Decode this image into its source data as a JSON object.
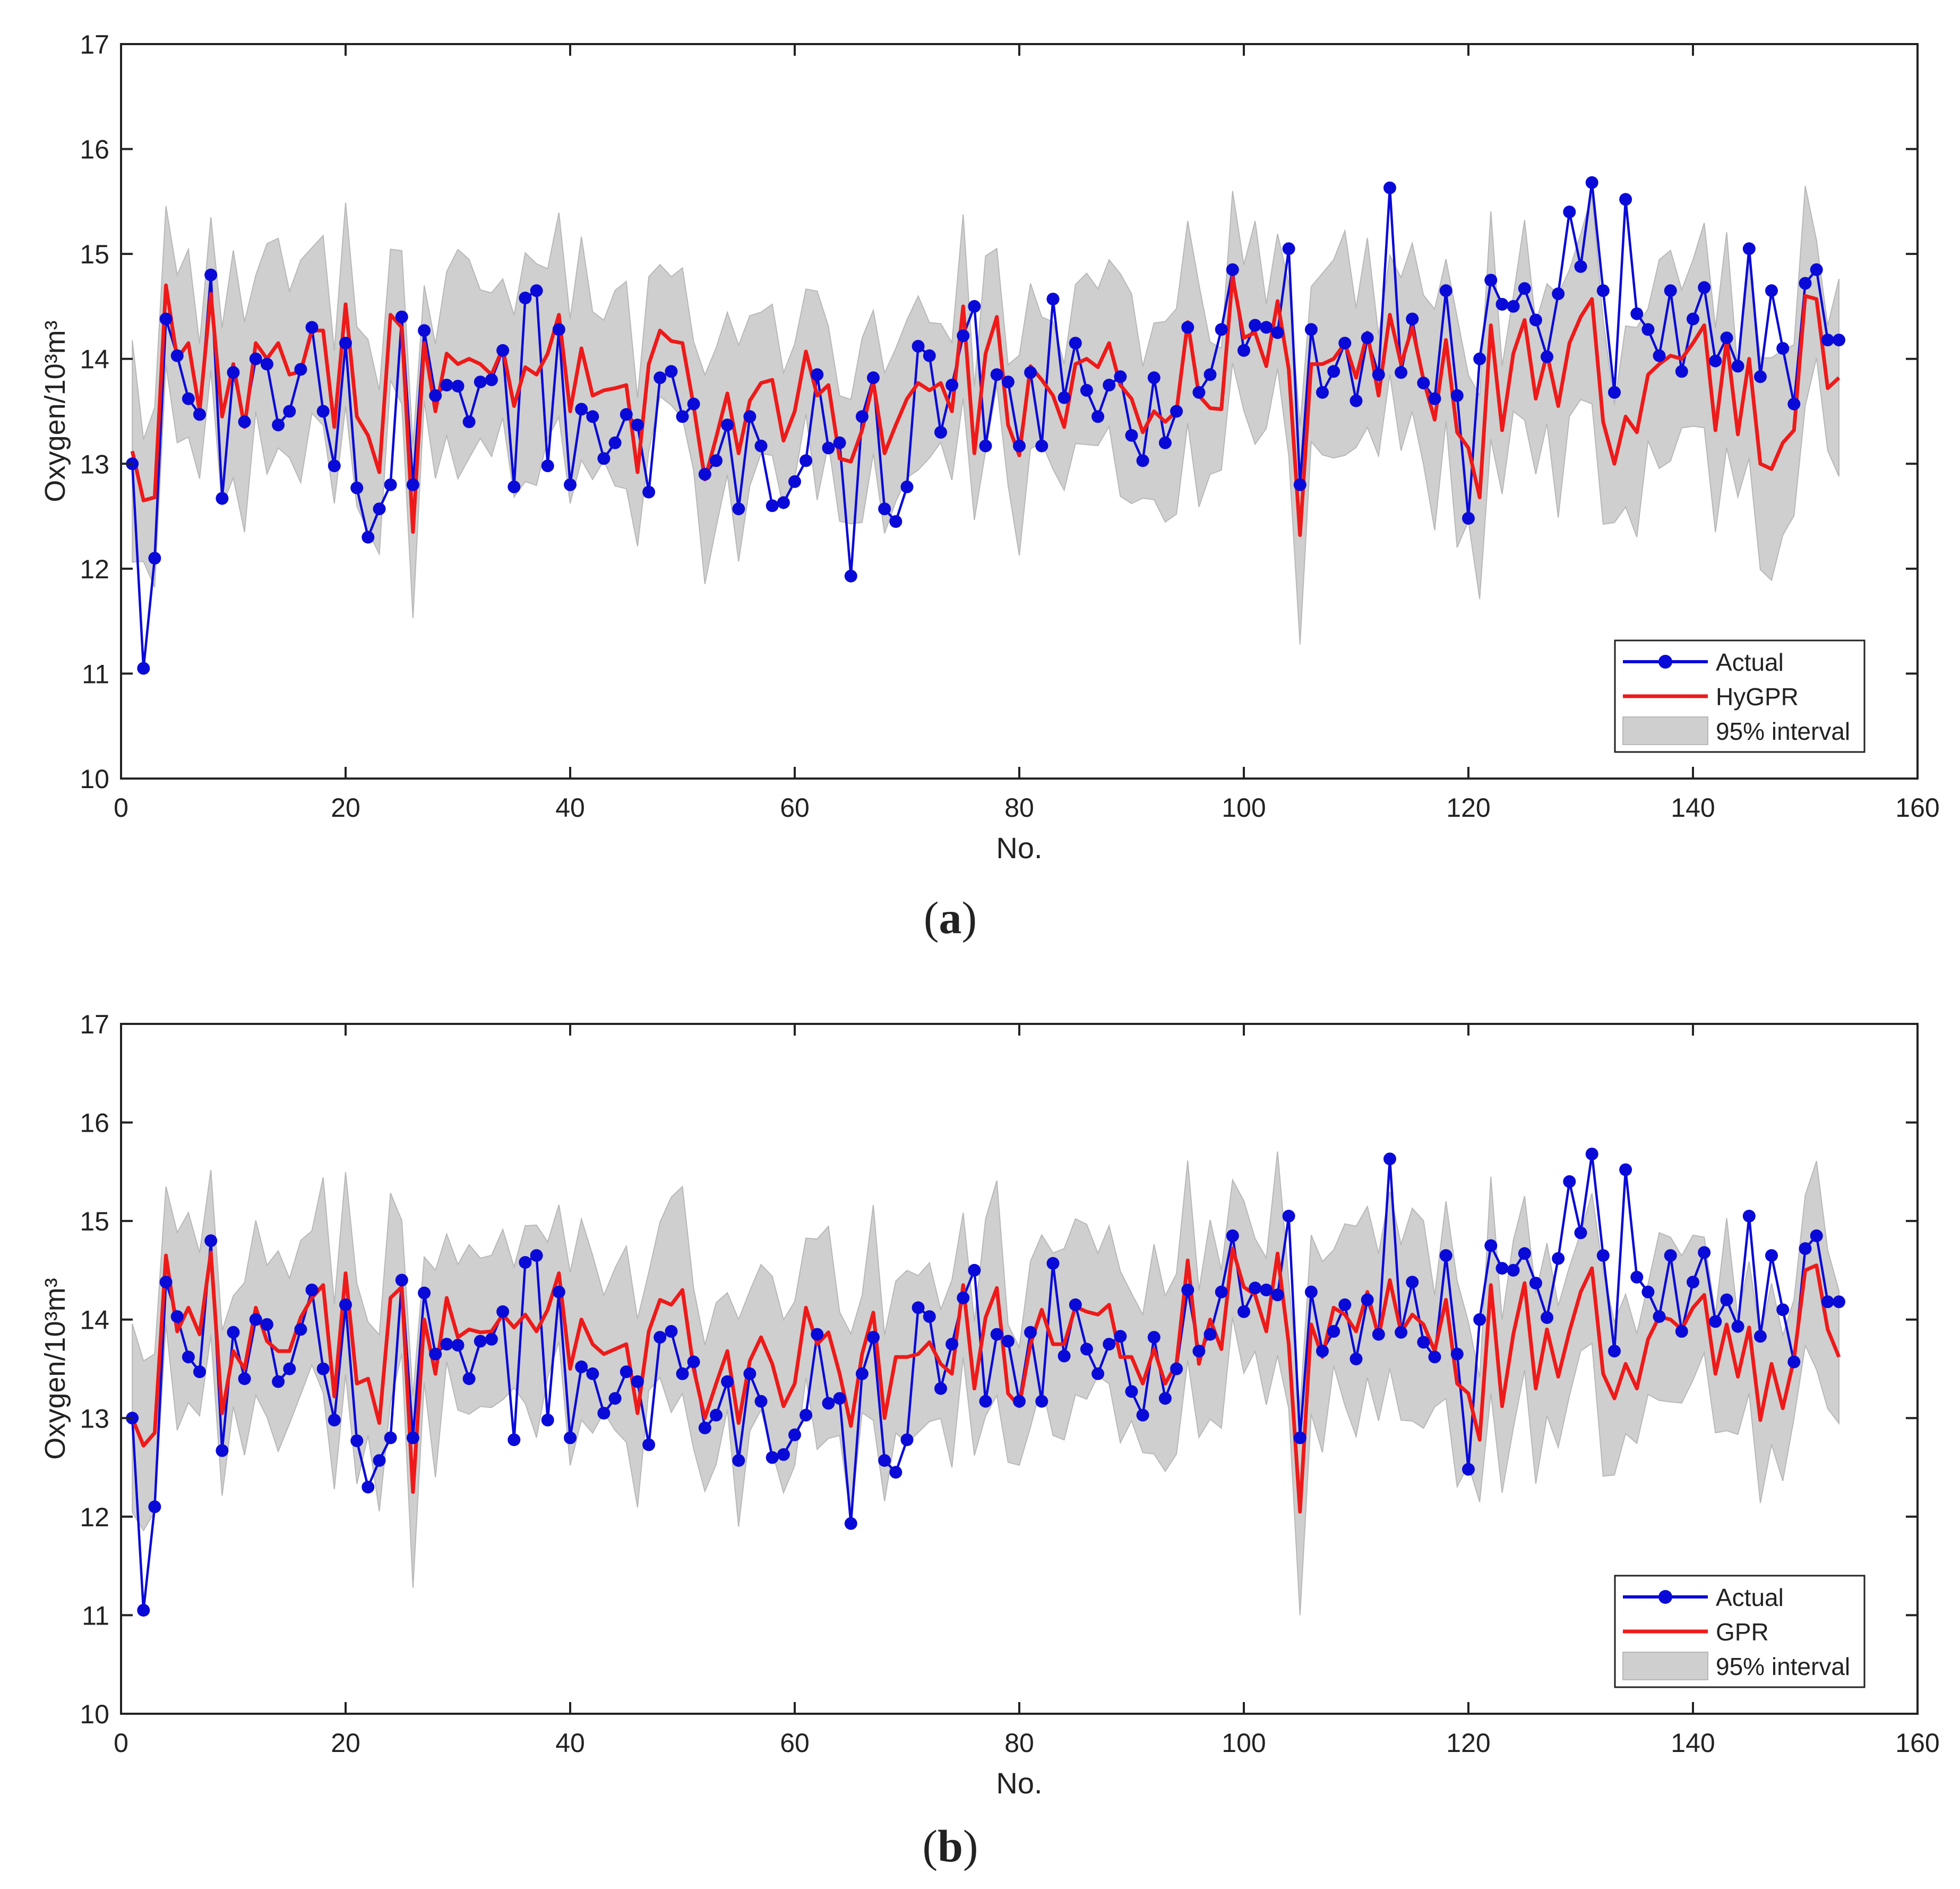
{
  "colors": {
    "actual": "#0a0ad8",
    "prediction": "#ee1a1a",
    "band_fill": "#cfcfcf",
    "band_stroke": "#b8b8b8",
    "axis": "#222222"
  },
  "chart_data": [
    {
      "type": "line",
      "panel_label": "a",
      "xlabel": "No.",
      "ylabel": "Oxygen/10³m³",
      "xlim": [
        0,
        160
      ],
      "ylim": [
        10,
        17
      ],
      "xticks": [
        "0",
        "20",
        "40",
        "60",
        "80",
        "100",
        "120",
        "140",
        "160"
      ],
      "yticks": [
        "10",
        "11",
        "12",
        "13",
        "14",
        "15",
        "16",
        "17"
      ],
      "legend": {
        "position": "bottom-right",
        "entries": [
          {
            "label": "Actual",
            "kind": "line-marker"
          },
          {
            "label": "HyGPR",
            "kind": "line"
          },
          {
            "label": "95% interval",
            "kind": "band"
          }
        ]
      },
      "x": [
        1,
        2,
        3,
        4,
        5,
        6,
        7,
        8,
        9,
        10,
        11,
        12,
        13,
        14,
        15,
        16,
        17,
        18,
        19,
        20,
        21,
        22,
        23,
        24,
        25,
        26,
        27,
        28,
        29,
        30,
        31,
        32,
        33,
        34,
        35,
        36,
        37,
        38,
        39,
        40,
        41,
        42,
        43,
        44,
        45,
        46,
        47,
        48,
        49,
        50,
        51,
        52,
        53,
        54,
        55,
        56,
        57,
        58,
        59,
        60,
        61,
        62,
        63,
        64,
        65,
        66,
        67,
        68,
        69,
        70,
        71,
        72,
        73,
        74,
        75,
        76,
        77,
        78,
        79,
        80,
        81,
        82,
        83,
        84,
        85,
        86,
        87,
        88,
        89,
        90,
        91,
        92,
        93,
        94,
        95,
        96,
        97,
        98,
        99,
        100,
        101,
        102,
        103,
        104,
        105,
        106,
        107,
        108,
        109,
        110,
        111,
        112,
        113,
        114,
        115,
        116,
        117,
        118,
        119,
        120,
        121,
        122,
        123,
        124,
        125,
        126,
        127,
        128,
        129,
        130,
        131,
        132,
        133,
        134,
        135,
        136,
        137,
        138,
        139,
        140,
        141,
        142,
        143,
        144,
        145,
        146,
        147,
        148,
        149,
        150,
        151,
        152,
        153
      ],
      "series": [
        {
          "name": "Actual",
          "values": [
            13.0,
            11.05,
            12.1,
            14.38,
            14.03,
            13.62,
            13.47,
            14.8,
            12.67,
            13.87,
            13.4,
            14.0,
            13.95,
            13.37,
            13.5,
            13.9,
            14.3,
            13.5,
            12.98,
            14.15,
            12.77,
            12.3,
            12.57,
            12.8,
            14.4,
            12.8,
            14.27,
            13.65,
            13.75,
            13.74,
            13.4,
            13.78,
            13.8,
            14.08,
            12.78,
            14.58,
            14.65,
            12.98,
            14.28,
            12.8,
            13.52,
            13.45,
            13.05,
            13.2,
            13.47,
            13.37,
            12.73,
            13.82,
            13.88,
            13.45,
            13.57,
            12.9,
            13.03,
            13.37,
            12.57,
            13.45,
            13.17,
            12.6,
            12.63,
            12.83,
            13.03,
            13.85,
            13.15,
            13.2,
            11.93,
            13.45,
            13.82,
            12.57,
            12.45,
            12.78,
            14.12,
            14.03,
            13.3,
            13.75,
            14.22,
            14.5,
            13.17,
            13.85,
            13.78,
            13.17,
            13.87,
            13.17,
            14.57,
            13.63,
            14.15,
            13.7,
            13.45,
            13.75,
            13.83,
            13.27,
            13.03,
            13.82,
            13.2,
            13.5,
            14.3,
            13.68,
            13.85,
            14.28,
            14.85,
            14.08,
            14.32,
            14.3,
            14.25,
            15.05,
            12.8,
            14.28,
            13.68,
            13.88,
            14.15,
            13.6,
            14.2,
            13.85,
            15.63,
            13.87,
            14.38,
            13.77,
            13.62,
            14.65,
            13.65,
            12.48,
            14.0,
            14.75,
            14.52,
            14.5,
            14.67,
            14.37,
            14.02,
            14.62,
            15.4,
            14.88,
            15.68,
            14.65,
            13.68,
            15.52,
            14.43,
            14.28,
            14.03,
            14.65,
            13.88,
            14.38,
            14.68,
            13.98,
            14.2,
            13.93,
            15.05,
            13.83,
            14.65,
            14.1,
            13.57,
            14.72,
            14.85,
            14.18,
            14.18
          ]
        },
        {
          "name": "HyGPR",
          "values": [
            13.12,
            12.65,
            12.68,
            14.7,
            14.0,
            14.15,
            13.5,
            14.62,
            13.45,
            13.95,
            13.35,
            14.15,
            14.0,
            14.15,
            13.85,
            13.88,
            14.27,
            14.27,
            13.35,
            14.52,
            13.45,
            13.27,
            12.92,
            14.42,
            14.3,
            12.35,
            14.15,
            13.5,
            14.05,
            13.95,
            14.0,
            13.95,
            13.85,
            14.1,
            13.55,
            13.92,
            13.85,
            14.05,
            14.42,
            13.5,
            14.1,
            13.65,
            13.7,
            13.72,
            13.75,
            12.92,
            13.95,
            14.27,
            14.17,
            14.15,
            13.55,
            12.85,
            13.25,
            13.67,
            13.1,
            13.6,
            13.77,
            13.8,
            13.22,
            13.5,
            14.07,
            13.65,
            13.75,
            13.05,
            13.02,
            13.32,
            13.78,
            13.1,
            13.37,
            13.62,
            13.77,
            13.7,
            13.77,
            13.5,
            14.5,
            13.1,
            14.05,
            14.4,
            13.37,
            13.08,
            13.93,
            13.8,
            13.65,
            13.35,
            13.95,
            14.0,
            13.92,
            14.15,
            13.75,
            13.62,
            13.3,
            13.5,
            13.4,
            13.5,
            14.35,
            13.65,
            13.53,
            13.52,
            14.78,
            14.2,
            14.25,
            13.93,
            14.55,
            13.9,
            12.32,
            13.95,
            13.95,
            14.0,
            14.15,
            13.82,
            14.25,
            13.65,
            14.42,
            13.95,
            14.3,
            13.8,
            13.42,
            14.18,
            13.3,
            13.15,
            12.68,
            14.32,
            13.32,
            14.05,
            14.37,
            13.62,
            14.05,
            13.55,
            14.15,
            14.4,
            14.57,
            13.4,
            13.0,
            13.45,
            13.3,
            13.85,
            13.95,
            14.03,
            14.0,
            14.15,
            14.32,
            13.32,
            14.18,
            13.28,
            14.0,
            13.0,
            12.95,
            13.2,
            13.32,
            14.6,
            14.57,
            13.72,
            13.82
          ]
        }
      ]
    },
    {
      "type": "line",
      "panel_label": "b",
      "xlabel": "No.",
      "ylabel": "Oxygen/10³m³",
      "xlim": [
        0,
        160
      ],
      "ylim": [
        10,
        17
      ],
      "xticks": [
        "0",
        "20",
        "40",
        "60",
        "80",
        "100",
        "120",
        "140",
        "160"
      ],
      "yticks": [
        "10",
        "11",
        "12",
        "13",
        "14",
        "15",
        "16",
        "17"
      ],
      "legend": {
        "position": "bottom-right",
        "entries": [
          {
            "label": "Actual",
            "kind": "line-marker"
          },
          {
            "label": "GPR",
            "kind": "line"
          },
          {
            "label": "95% interval",
            "kind": "band"
          }
        ]
      },
      "x": [
        1,
        2,
        3,
        4,
        5,
        6,
        7,
        8,
        9,
        10,
        11,
        12,
        13,
        14,
        15,
        16,
        17,
        18,
        19,
        20,
        21,
        22,
        23,
        24,
        25,
        26,
        27,
        28,
        29,
        30,
        31,
        32,
        33,
        34,
        35,
        36,
        37,
        38,
        39,
        40,
        41,
        42,
        43,
        44,
        45,
        46,
        47,
        48,
        49,
        50,
        51,
        52,
        53,
        54,
        55,
        56,
        57,
        58,
        59,
        60,
        61,
        62,
        63,
        64,
        65,
        66,
        67,
        68,
        69,
        70,
        71,
        72,
        73,
        74,
        75,
        76,
        77,
        78,
        79,
        80,
        81,
        82,
        83,
        84,
        85,
        86,
        87,
        88,
        89,
        90,
        91,
        92,
        93,
        94,
        95,
        96,
        97,
        98,
        99,
        100,
        101,
        102,
        103,
        104,
        105,
        106,
        107,
        108,
        109,
        110,
        111,
        112,
        113,
        114,
        115,
        116,
        117,
        118,
        119,
        120,
        121,
        122,
        123,
        124,
        125,
        126,
        127,
        128,
        129,
        130,
        131,
        132,
        133,
        134,
        135,
        136,
        137,
        138,
        139,
        140,
        141,
        142,
        143,
        144,
        145,
        146,
        147,
        148,
        149,
        150,
        151,
        152,
        153
      ],
      "series": [
        {
          "name": "Actual",
          "values": [
            13.0,
            11.05,
            12.1,
            14.38,
            14.03,
            13.62,
            13.47,
            14.8,
            12.67,
            13.87,
            13.4,
            14.0,
            13.95,
            13.37,
            13.5,
            13.9,
            14.3,
            13.5,
            12.98,
            14.15,
            12.77,
            12.3,
            12.57,
            12.8,
            14.4,
            12.8,
            14.27,
            13.65,
            13.75,
            13.74,
            13.4,
            13.78,
            13.8,
            14.08,
            12.78,
            14.58,
            14.65,
            12.98,
            14.28,
            12.8,
            13.52,
            13.45,
            13.05,
            13.2,
            13.47,
            13.37,
            12.73,
            13.82,
            13.88,
            13.45,
            13.57,
            12.9,
            13.03,
            13.37,
            12.57,
            13.45,
            13.17,
            12.6,
            12.63,
            12.83,
            13.03,
            13.85,
            13.15,
            13.2,
            11.93,
            13.45,
            13.82,
            12.57,
            12.45,
            12.78,
            14.12,
            14.03,
            13.3,
            13.75,
            14.22,
            14.5,
            13.17,
            13.85,
            13.78,
            13.17,
            13.87,
            13.17,
            14.57,
            13.63,
            14.15,
            13.7,
            13.45,
            13.75,
            13.83,
            13.27,
            13.03,
            13.82,
            13.2,
            13.5,
            14.3,
            13.68,
            13.85,
            14.28,
            14.85,
            14.08,
            14.32,
            14.3,
            14.25,
            15.05,
            12.8,
            14.28,
            13.68,
            13.88,
            14.15,
            13.6,
            14.2,
            13.85,
            15.63,
            13.87,
            14.38,
            13.77,
            13.62,
            14.65,
            13.65,
            12.48,
            14.0,
            14.75,
            14.52,
            14.5,
            14.67,
            14.37,
            14.02,
            14.62,
            15.4,
            14.88,
            15.68,
            14.65,
            13.68,
            15.52,
            14.43,
            14.28,
            14.03,
            14.65,
            13.88,
            14.38,
            14.68,
            13.98,
            14.2,
            13.93,
            15.05,
            13.83,
            14.65,
            14.1,
            13.57,
            14.72,
            14.85,
            14.18,
            14.18
          ]
        },
        {
          "name": "GPR",
          "values": [
            13.0,
            12.72,
            12.85,
            14.65,
            13.88,
            14.12,
            13.85,
            14.68,
            13.05,
            13.68,
            13.5,
            14.12,
            13.78,
            13.68,
            13.68,
            14.02,
            14.22,
            14.35,
            13.22,
            14.47,
            13.35,
            13.4,
            12.95,
            14.22,
            14.33,
            12.25,
            14.0,
            13.45,
            14.22,
            13.82,
            13.9,
            13.87,
            13.88,
            14.05,
            13.92,
            14.05,
            13.88,
            14.1,
            14.47,
            13.5,
            14.0,
            13.75,
            13.65,
            13.7,
            13.75,
            13.05,
            13.88,
            14.2,
            14.15,
            14.3,
            13.5,
            13.0,
            13.35,
            13.68,
            12.95,
            13.58,
            13.82,
            13.55,
            13.12,
            13.35,
            14.12,
            13.75,
            13.87,
            13.45,
            12.92,
            13.65,
            14.07,
            13.0,
            13.62,
            13.62,
            13.65,
            13.77,
            13.55,
            13.45,
            14.35,
            13.3,
            14.02,
            14.32,
            13.25,
            13.12,
            13.75,
            14.1,
            13.75,
            13.75,
            14.13,
            14.08,
            14.05,
            14.15,
            13.62,
            13.62,
            13.35,
            13.7,
            13.35,
            13.55,
            14.6,
            13.55,
            14.0,
            13.7,
            14.72,
            14.33,
            14.25,
            13.88,
            14.67,
            13.75,
            12.05,
            13.95,
            13.62,
            14.12,
            14.05,
            13.88,
            14.28,
            13.82,
            14.4,
            13.87,
            14.05,
            13.95,
            13.68,
            14.2,
            13.35,
            13.25,
            12.78,
            14.35,
            13.12,
            13.85,
            14.37,
            13.3,
            13.9,
            13.42,
            13.88,
            14.28,
            14.52,
            13.45,
            13.2,
            13.55,
            13.3,
            13.8,
            14.03,
            14.0,
            13.9,
            14.12,
            14.25,
            13.45,
            13.95,
            13.42,
            13.92,
            12.98,
            13.55,
            13.1,
            13.6,
            14.5,
            14.55,
            13.9,
            13.62
          ]
        }
      ]
    }
  ],
  "captions": [
    "(a)",
    "(b)"
  ]
}
